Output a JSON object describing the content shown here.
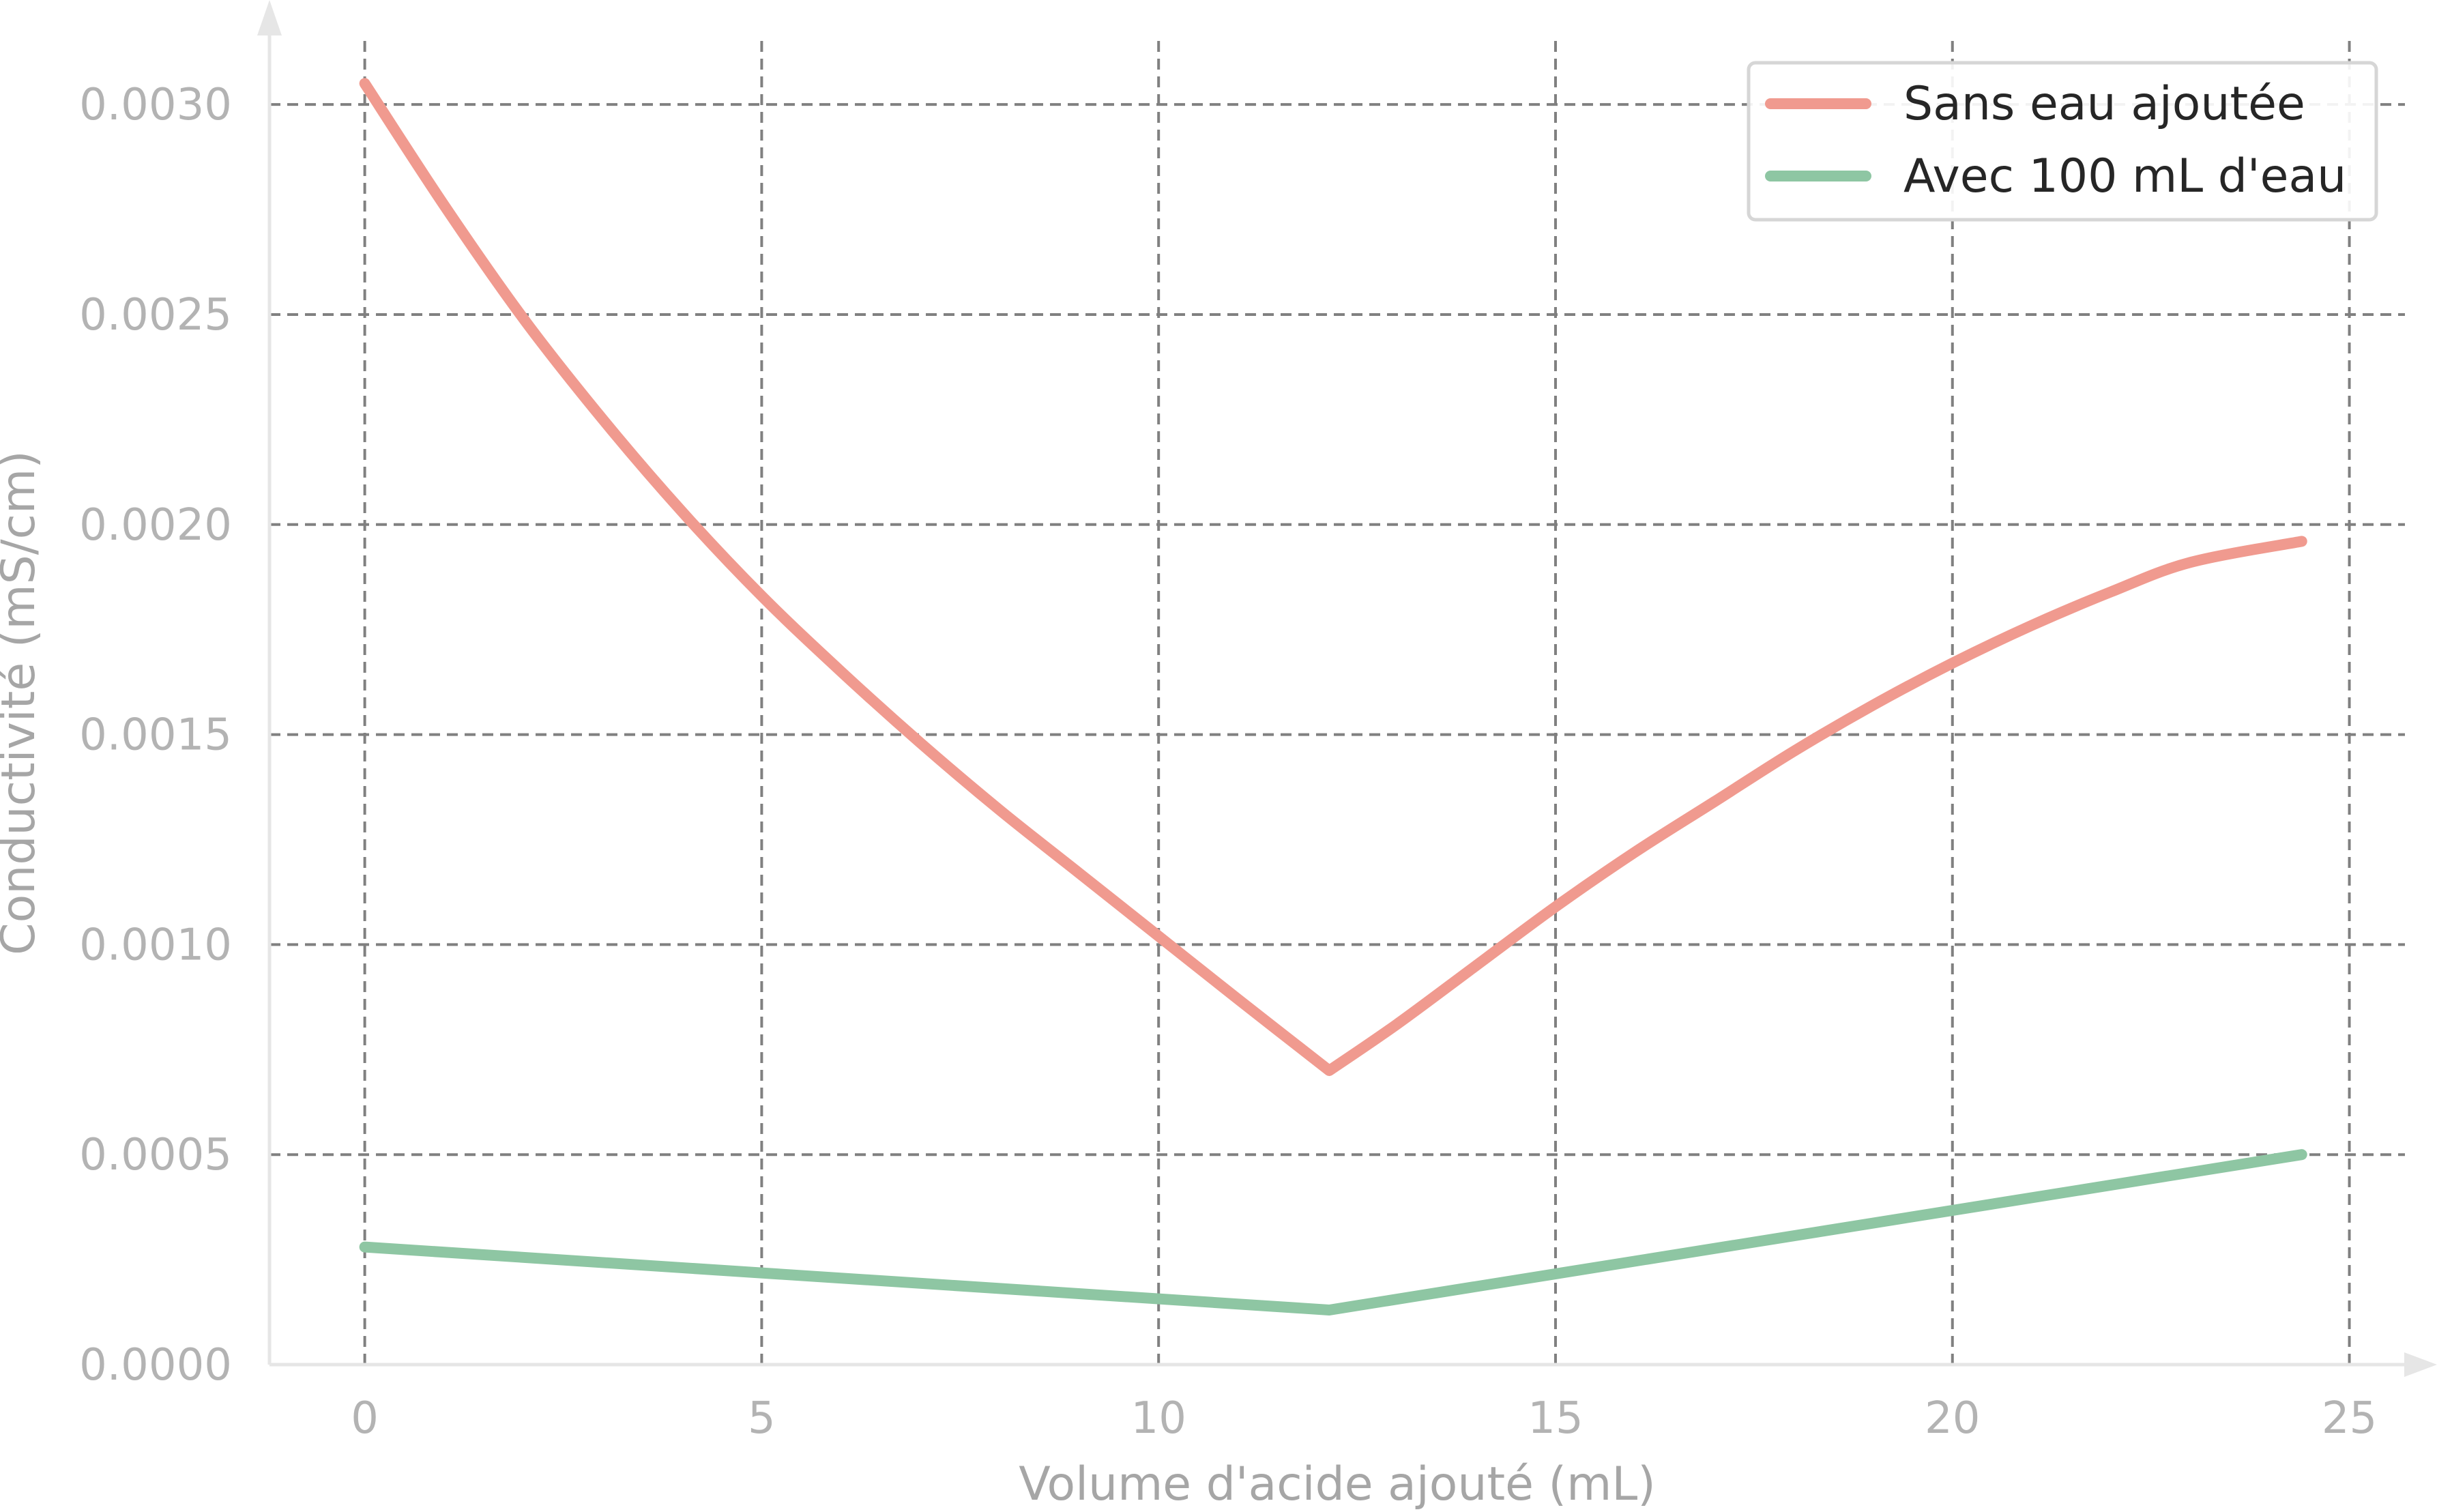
{
  "chart_data": {
    "type": "line",
    "xlabel": "Volume d'acide ajouté (mL)",
    "ylabel": "Conductivité (mS/cm)",
    "xlim": [
      -1.2,
      25.7
    ],
    "ylim": [
      0,
      0.0032
    ],
    "xticks": [
      0,
      5,
      10,
      15,
      20,
      25
    ],
    "xtick_labels": [
      "0",
      "5",
      "10",
      "15",
      "20",
      "25"
    ],
    "yticks": [
      0,
      0.0005,
      0.001,
      0.0015,
      0.002,
      0.0025,
      0.003
    ],
    "ytick_labels": [
      "0.0000",
      "0.0005",
      "0.0010",
      "0.0015",
      "0.0020",
      "0.0025",
      "0.0030"
    ],
    "grid": true,
    "legend_position": "top-right",
    "series": [
      {
        "name": "Sans eau ajoutée",
        "color": "#f09a8f",
        "x": [
          0,
          1,
          2,
          3,
          4,
          5,
          6,
          7,
          8,
          9,
          10,
          11,
          12.15,
          13,
          14,
          15,
          16,
          17,
          18,
          19,
          20,
          21,
          22,
          23,
          24.4
        ],
        "y": [
          0.00305,
          0.00276,
          0.00249,
          0.00225,
          0.00203,
          0.00183,
          0.00165,
          0.00148,
          0.00132,
          0.00117,
          0.00102,
          0.00087,
          0.0007,
          0.00081,
          0.00095,
          0.00109,
          0.00122,
          0.00134,
          0.00146,
          0.00157,
          0.00167,
          0.00176,
          0.00184,
          0.00191,
          0.00196
        ]
      },
      {
        "name": "Avec 100 mL d'eau",
        "color": "#8ec6a3",
        "x": [
          0,
          12.15,
          24.4
        ],
        "y": [
          0.00028,
          0.00013,
          0.0005
        ]
      }
    ]
  }
}
